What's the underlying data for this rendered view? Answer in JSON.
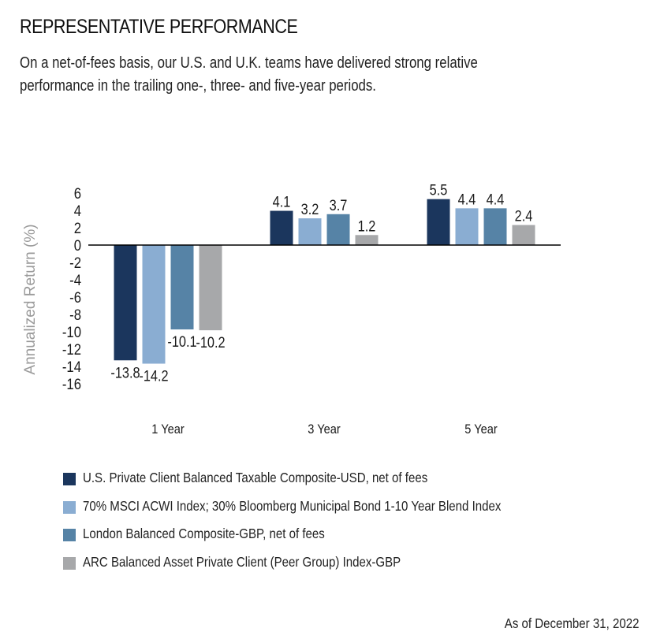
{
  "header": {
    "title": "REPRESENTATIVE PERFORMANCE",
    "subtitle": "On a net-of-fees basis, our U.S. and U.K. teams have delivered strong relative performance in the trailing one-, three- and five-year periods."
  },
  "chart_data": {
    "type": "bar",
    "title": "",
    "xlabel": "",
    "ylabel": "Annualized Return (%)",
    "ylim": [
      -16,
      6
    ],
    "yticks": [
      6,
      4,
      2,
      0,
      -2,
      -4,
      -6,
      -8,
      -10,
      -12,
      -14,
      -16
    ],
    "categories": [
      "1 Year",
      "3 Year",
      "5 Year"
    ],
    "grid": false,
    "legend_position": "bottom",
    "series": [
      {
        "name": "U.S. Private Client Balanced Taxable Composite-USD, net of fees",
        "color": "#1b365d",
        "values": [
          -13.8,
          4.1,
          5.5
        ]
      },
      {
        "name": "70% MSCI ACWI Index; 30% Bloomberg Municipal Bond 1-10 Year Blend Index",
        "color": "#8aadd2",
        "values": [
          -14.2,
          3.2,
          4.4
        ]
      },
      {
        "name": "London Balanced Composite-GBP, net of fees",
        "color": "#5683a6",
        "values": [
          -10.1,
          3.7,
          4.4
        ]
      },
      {
        "name": "ARC Balanced Asset Private Client (Peer Group) Index-GBP",
        "color": "#a7a8aa",
        "values": [
          -10.2,
          1.2,
          2.4
        ]
      }
    ]
  },
  "footer": {
    "as_of": "As of December 31, 2022"
  }
}
